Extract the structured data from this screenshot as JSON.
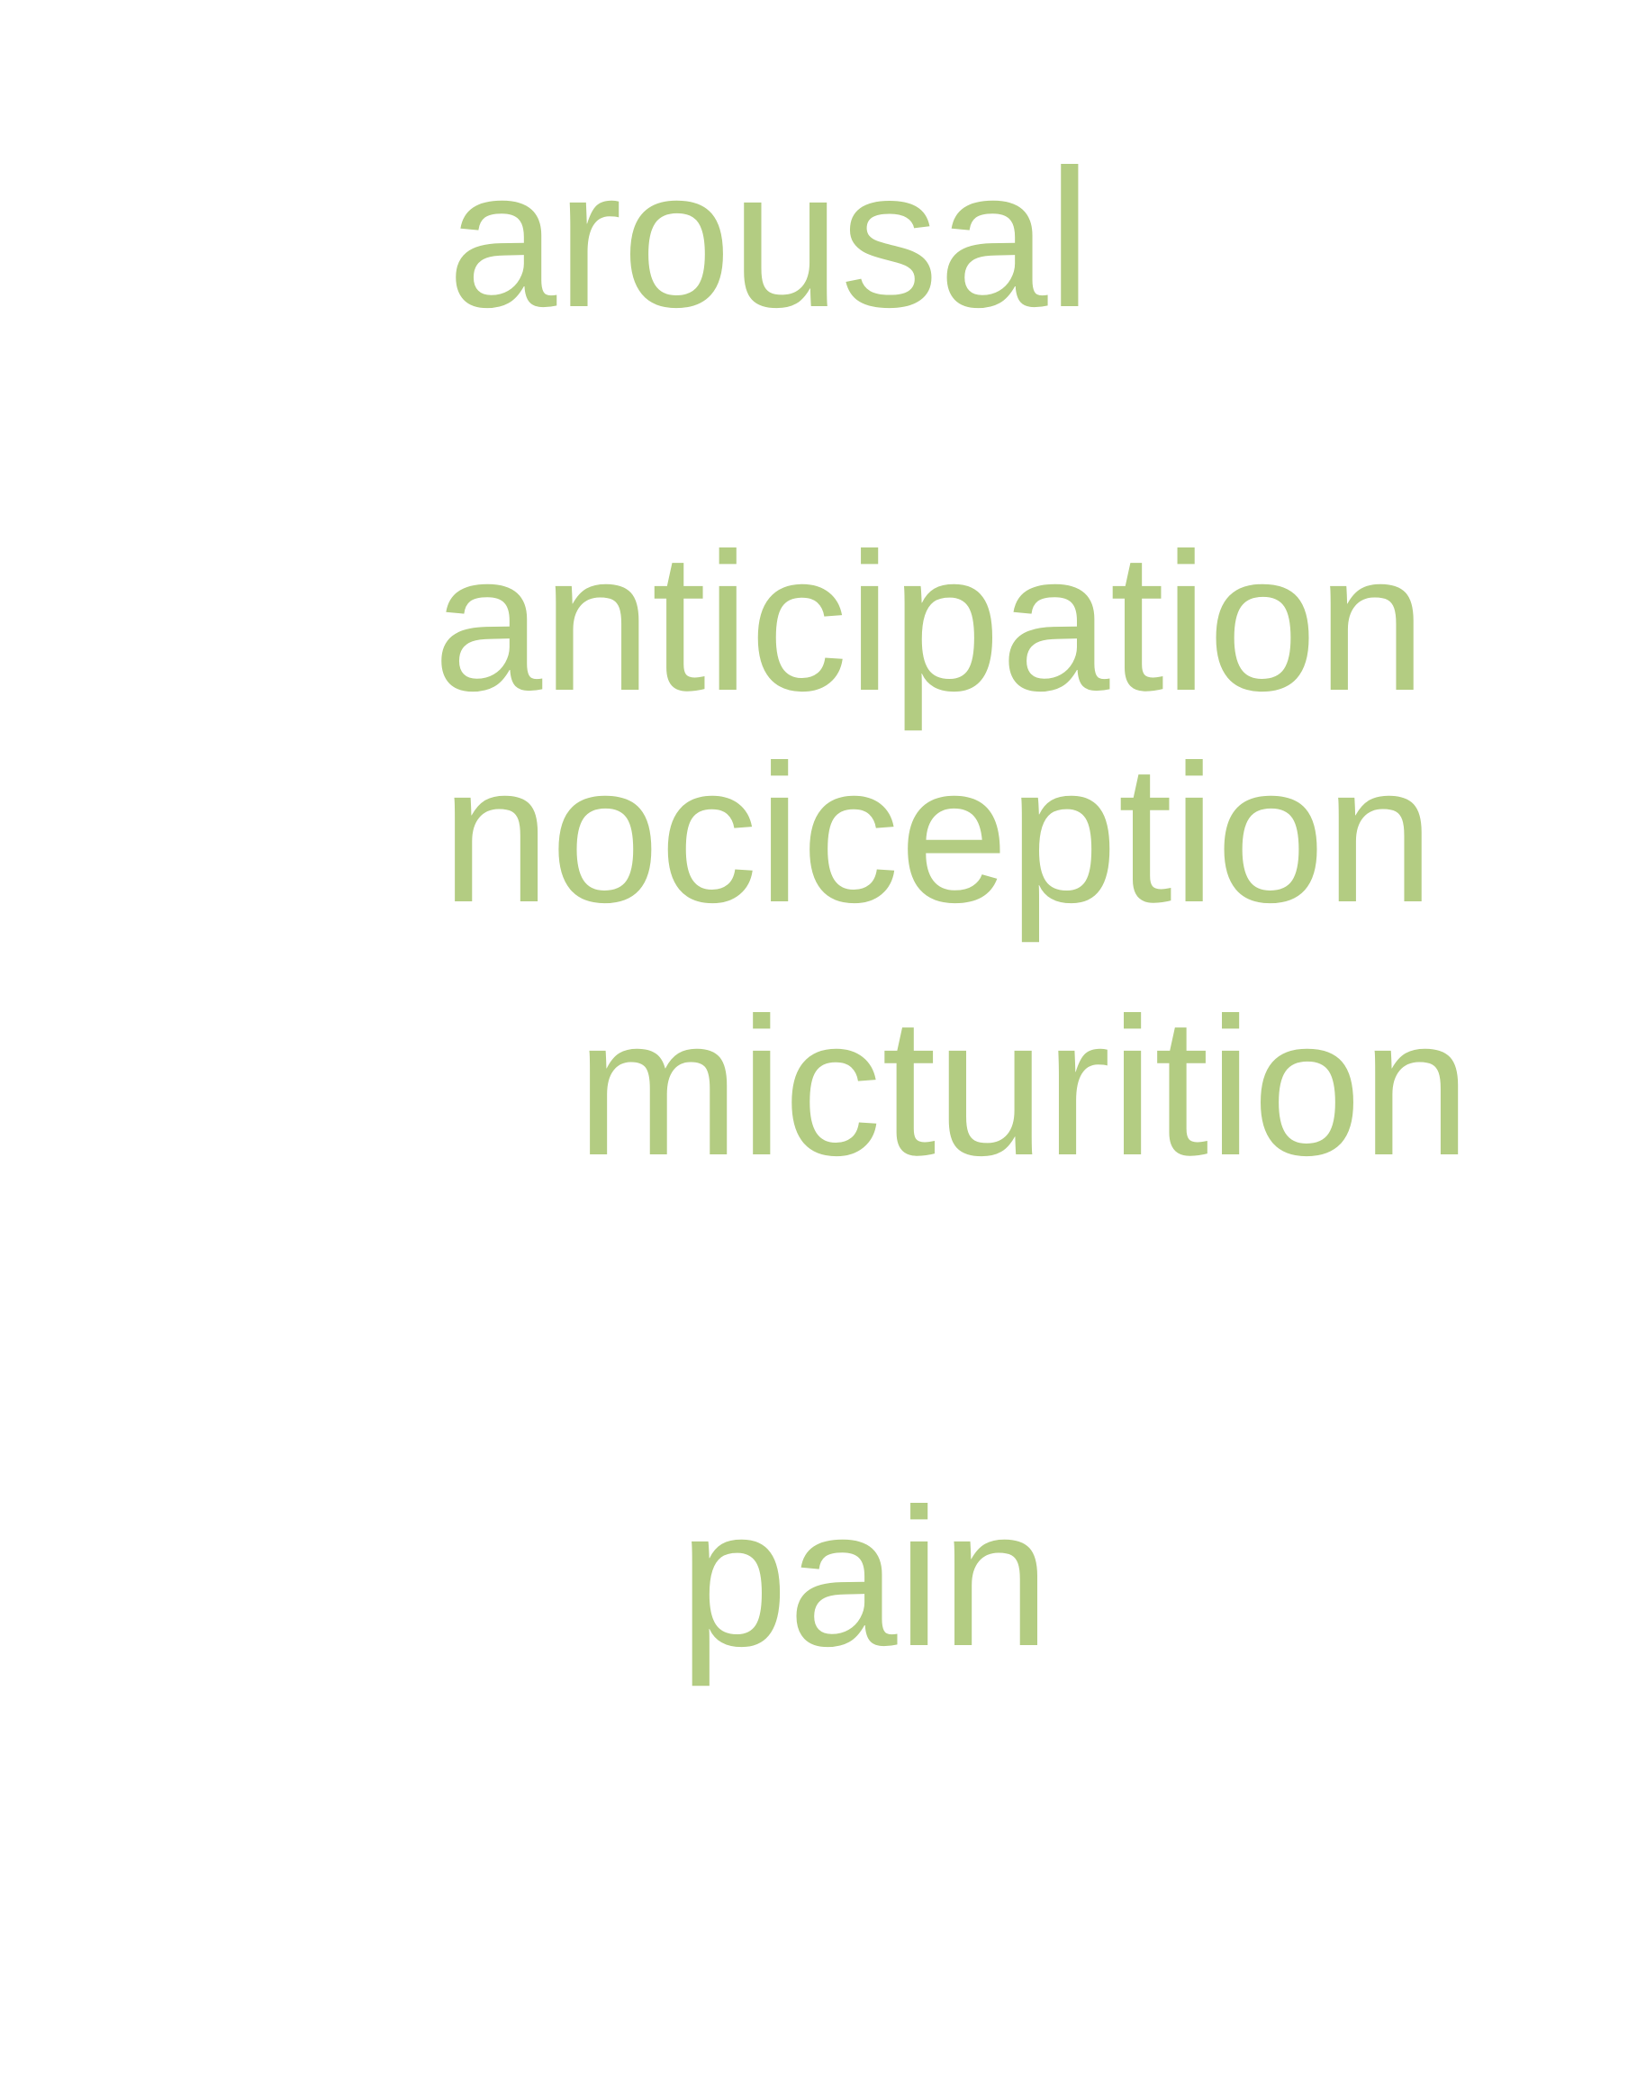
{
  "colors": {
    "text": "#b3cc82",
    "background": "#ffffff"
  },
  "words": [
    {
      "text": "arousal"
    },
    {
      "text": "anticipation"
    },
    {
      "text": "nociception"
    },
    {
      "text": "micturition"
    },
    {
      "text": "pain"
    }
  ]
}
